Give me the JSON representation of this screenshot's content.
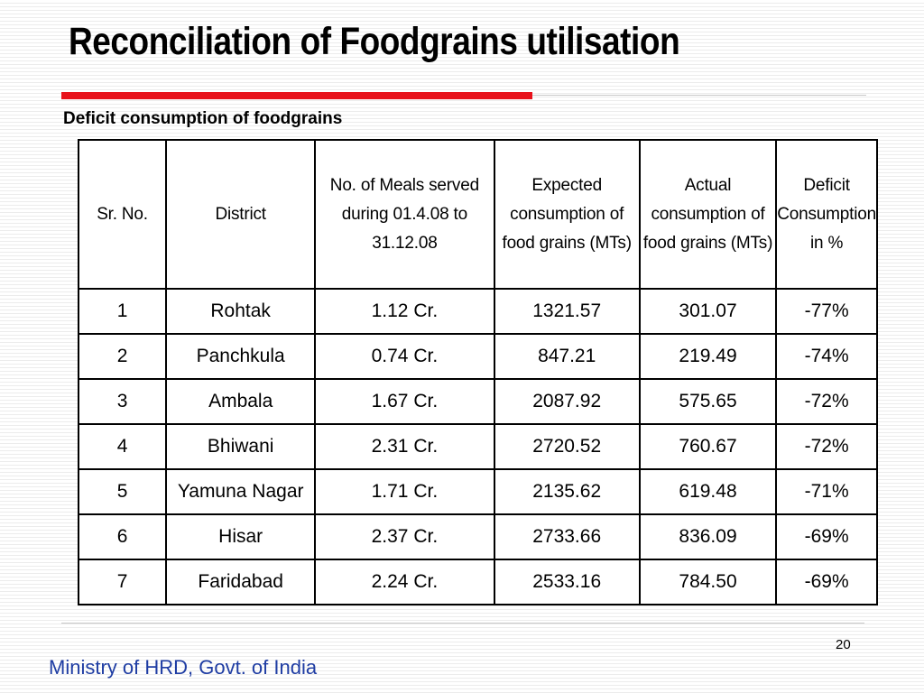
{
  "slide": {
    "title": "Reconciliation of Foodgrains utilisation",
    "subtitle": "Deficit consumption of foodgrains",
    "page_number": "20",
    "footer": "Ministry of HRD, Govt. of India",
    "accent_color": "#e8121b",
    "footer_color": "#1f3da3"
  },
  "table": {
    "headers": [
      "Sr. No.",
      "District",
      "No. of Meals served during 01.4.08 to 31.12.08",
      "Expected consumption of food grains (MTs)",
      "Actual consumption of food grains (MTs)",
      "Deficit Consumption in %"
    ],
    "rows": [
      [
        "1",
        "Rohtak",
        "1.12 Cr.",
        "1321.57",
        "301.07",
        "-77%"
      ],
      [
        "2",
        "Panchkula",
        "0.74 Cr.",
        "847.21",
        "219.49",
        "-74%"
      ],
      [
        "3",
        "Ambala",
        "1.67 Cr.",
        "2087.92",
        "575.65",
        "-72%"
      ],
      [
        "4",
        "Bhiwani",
        "2.31 Cr.",
        "2720.52",
        "760.67",
        "-72%"
      ],
      [
        "5",
        "Yamuna Nagar",
        "1.71 Cr.",
        "2135.62",
        "619.48",
        "-71%"
      ],
      [
        "6",
        "Hisar",
        "2.37 Cr.",
        "2733.66",
        "836.09",
        "-69%"
      ],
      [
        "7",
        "Faridabad",
        "2.24 Cr.",
        "2533.16",
        "784.50",
        "-69%"
      ]
    ]
  }
}
